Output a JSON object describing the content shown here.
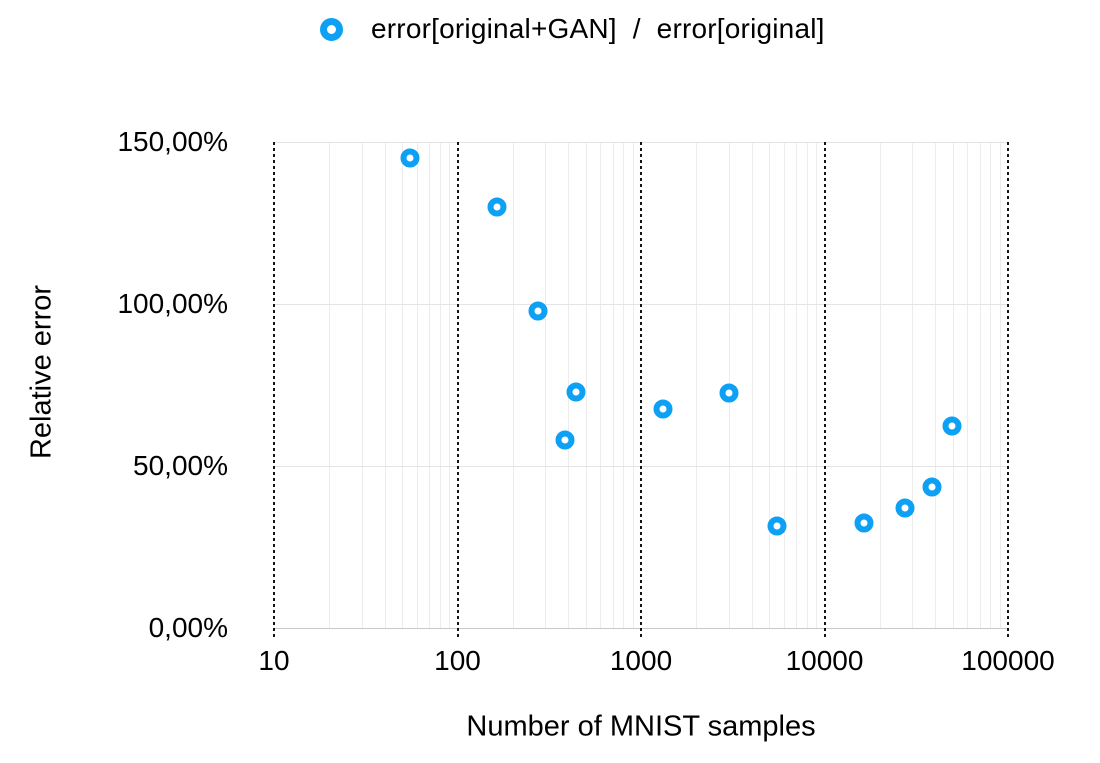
{
  "legend": {
    "label": "error[original+GAN]  /  error[original]",
    "marker_icon": "open-circle-icon",
    "marker_color": "#0da1f5"
  },
  "y_axis": {
    "title": "Relative error",
    "ticks": [
      {
        "label": "150,00%",
        "value": 150
      },
      {
        "label": "100,00%",
        "value": 100
      },
      {
        "label": "50,00%",
        "value": 50
      },
      {
        "label": "0,00%",
        "value": 0
      }
    ]
  },
  "x_axis": {
    "title": "Number of MNIST samples",
    "ticks": [
      {
        "label": "10",
        "value": 10
      },
      {
        "label": "100",
        "value": 100
      },
      {
        "label": "1000",
        "value": 1000
      },
      {
        "label": "10000",
        "value": 10000
      },
      {
        "label": "100000",
        "value": 100000
      }
    ]
  },
  "colors": {
    "marker": "#0da1f5",
    "minor_grid": "#ececec",
    "major_h_grid": "#e4e4e4",
    "baseline": "#c9c9c9",
    "dashed_decade_line": "#141414",
    "text": "#000000",
    "background": "#ffffff"
  },
  "chart_data": {
    "type": "scatter",
    "title": "",
    "xlabel": "Number of MNIST samples",
    "ylabel": "Relative error",
    "x_scale": "log",
    "xlim": [
      10,
      100000
    ],
    "ylim_percent": [
      0,
      150
    ],
    "y_tick_step_percent": 50,
    "grid": {
      "x_major": "black-dashed",
      "x_minor": "light-gray",
      "y_major": "light-gray"
    },
    "legend_position": "top-center",
    "series": [
      {
        "name": "error[original+GAN] / error[original]",
        "marker": "open-circle",
        "color": "#0da1f5",
        "points": [
          {
            "x": 55,
            "y_percent": 145
          },
          {
            "x": 165,
            "y_percent": 130
          },
          {
            "x": 275,
            "y_percent": 98
          },
          {
            "x": 385,
            "y_percent": 58
          },
          {
            "x": 440,
            "y_percent": 73
          },
          {
            "x": 1320,
            "y_percent": 67.5
          },
          {
            "x": 3025,
            "y_percent": 72.5
          },
          {
            "x": 5500,
            "y_percent": 31.5
          },
          {
            "x": 16500,
            "y_percent": 32.5
          },
          {
            "x": 27500,
            "y_percent": 37
          },
          {
            "x": 38500,
            "y_percent": 43.5
          },
          {
            "x": 49500,
            "y_percent": 62.5
          }
        ]
      }
    ]
  }
}
